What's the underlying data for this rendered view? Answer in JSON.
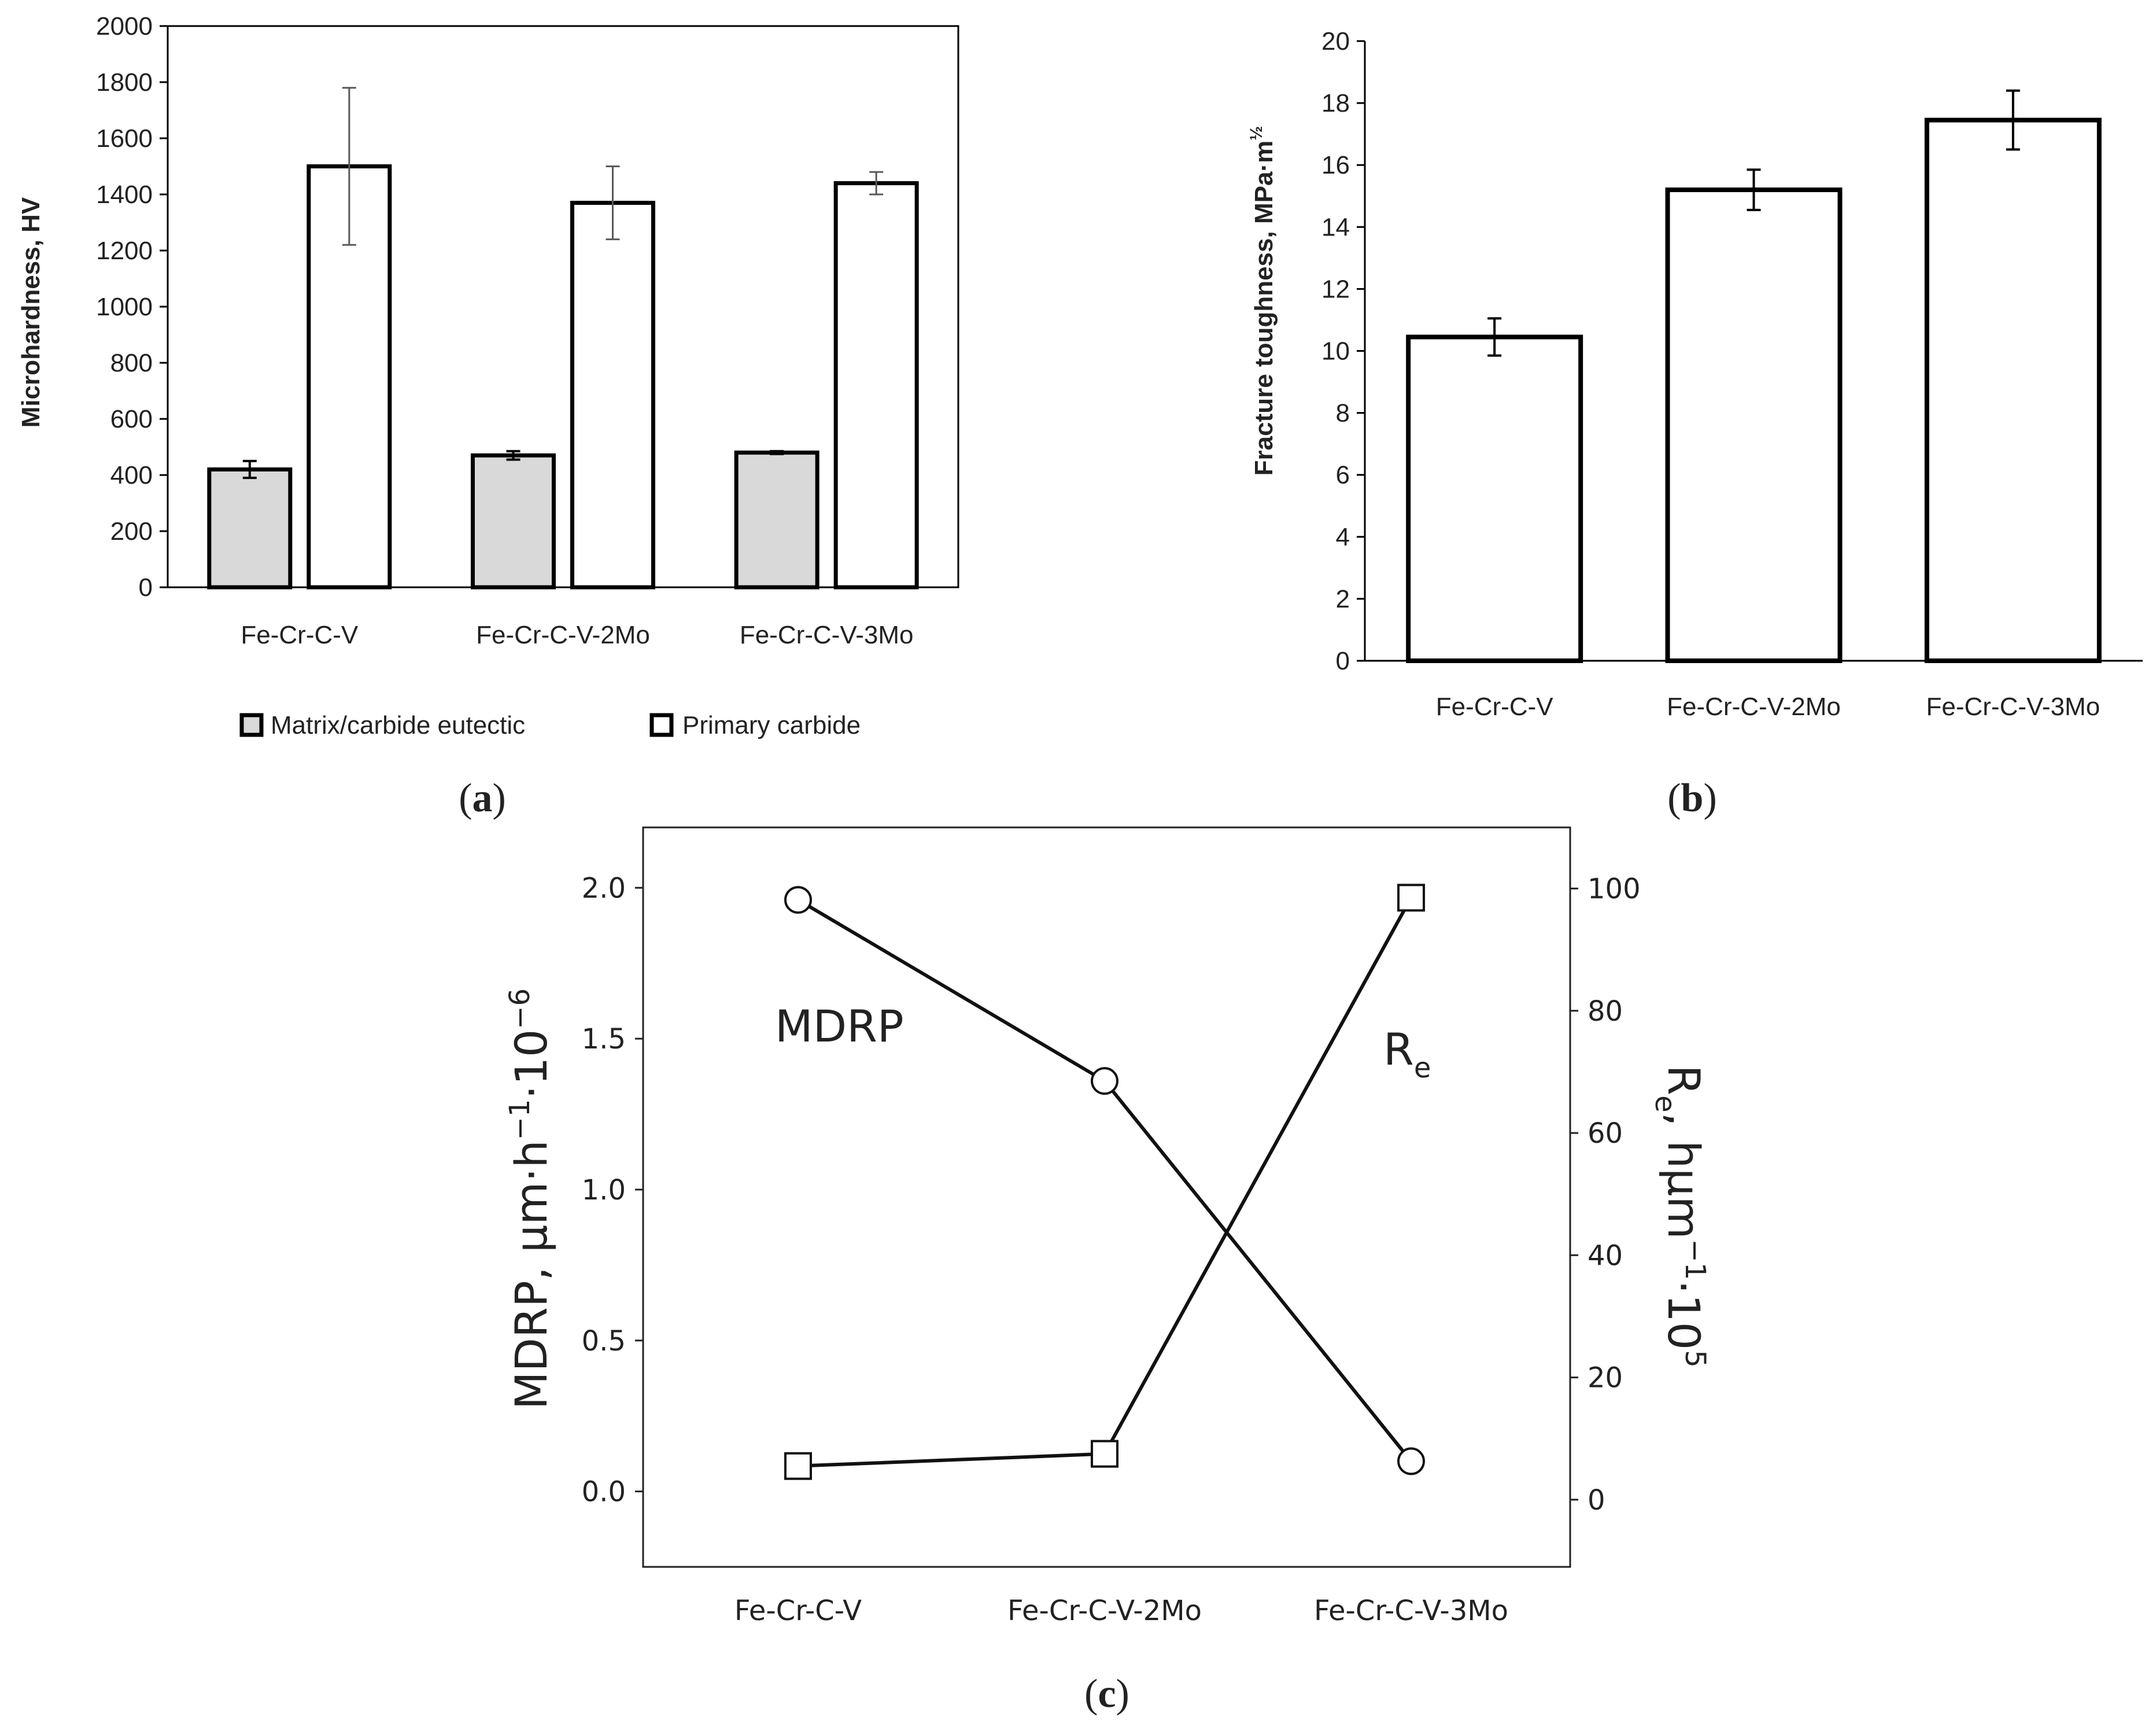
{
  "panel_labels": {
    "a": "(a)",
    "b": "(b)",
    "c": "(c)"
  },
  "colors": {
    "matrix_fill": "#d9d9d9",
    "carbide_fill": "#ffffff",
    "stroke": "#000000",
    "error_bar_a": "#595959"
  },
  "chart_data": [
    {
      "id": "a",
      "type": "bar",
      "title": "",
      "xlabel": "",
      "ylabel": "Microhardness, HV",
      "ylim": [
        0,
        2000
      ],
      "yticks": [
        0,
        200,
        400,
        600,
        800,
        1000,
        1200,
        1400,
        1600,
        1800,
        2000
      ],
      "categories": [
        "Fe-Cr-C-V",
        "Fe-Cr-C-V-2Mo",
        "Fe-Cr-C-V-3Mo"
      ],
      "series": [
        {
          "name": "Matrix/carbide eutectic",
          "values": [
            420,
            470,
            480
          ],
          "errors": [
            30,
            15,
            5
          ]
        },
        {
          "name": "Primary carbide",
          "values": [
            1500,
            1370,
            1440
          ],
          "errors": [
            280,
            130,
            40
          ]
        }
      ],
      "legend": "bottom",
      "grid": false
    },
    {
      "id": "b",
      "type": "bar",
      "title": "",
      "xlabel": "",
      "ylabel": "Fracture toughness, MPa·m",
      "ylabel_exponent": "½",
      "ylim": [
        0,
        20
      ],
      "yticks": [
        0,
        2,
        4,
        6,
        8,
        10,
        12,
        14,
        16,
        18,
        20
      ],
      "categories": [
        "Fe-Cr-C-V",
        "Fe-Cr-C-V-2Mo",
        "Fe-Cr-C-V-3Mo"
      ],
      "series": [
        {
          "name": "Fracture toughness",
          "values": [
            10.45,
            15.2,
            17.45
          ],
          "errors": [
            0.6,
            0.65,
            0.95
          ]
        }
      ],
      "grid": false
    },
    {
      "id": "c",
      "type": "line",
      "title": "",
      "categories": [
        "Fe-Cr-C-V",
        "Fe-Cr-C-V-2Mo",
        "Fe-Cr-C-V-3Mo"
      ],
      "ylabel_left": "MDRP, μm·h",
      "ylabel_left_sup1": "−1",
      "ylabel_left_mid": "·10",
      "ylabel_left_sup2": "−6",
      "ylabel_right": "R",
      "ylabel_right_sub": "e",
      "ylabel_right_mid": ", hμm",
      "ylabel_right_sup1": "−1",
      "ylabel_right_end": "·10",
      "ylabel_right_sup2": "5",
      "ylim_left": [
        -0.25,
        2.2
      ],
      "yticks_left": [
        "0.0",
        "0.5",
        "1.0",
        "1.5",
        "2.0"
      ],
      "ylim_right": [
        -11,
        110
      ],
      "yticks_right": [
        "0",
        "20",
        "40",
        "60",
        "80",
        "100"
      ],
      "series": [
        {
          "name": "MDRP",
          "axis": "left",
          "marker": "circle",
          "values": [
            1.96,
            1.36,
            0.1
          ]
        },
        {
          "name": "R",
          "name_sub": "e",
          "axis": "right",
          "marker": "square",
          "values": [
            5.5,
            7.5,
            98.5
          ]
        }
      ],
      "annotations": [
        "MDRP",
        "Re"
      ],
      "grid": false
    }
  ]
}
